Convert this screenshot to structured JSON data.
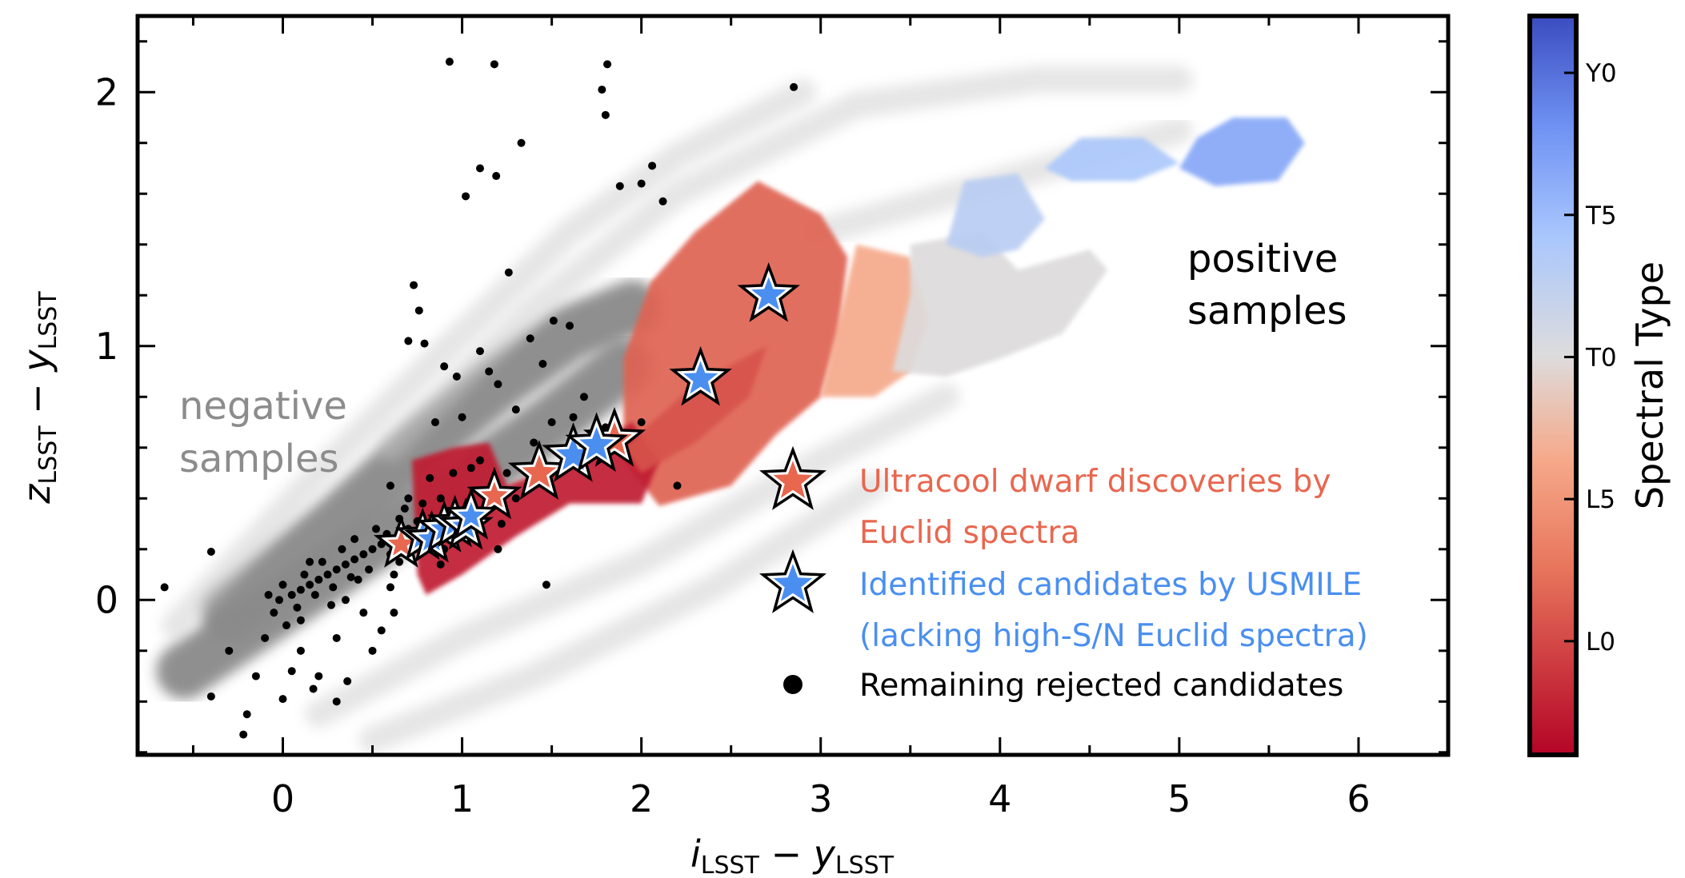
{
  "chart_data": {
    "type": "scatter",
    "xlabel": {
      "main": "i",
      "sub": "LSST",
      "minus": " − ",
      "main2": "y",
      "sub2": "LSST"
    },
    "ylabel": {
      "main": "z",
      "sub": "LSST",
      "minus": " − ",
      "main2": "y",
      "sub2": "LSST"
    },
    "xlim": [
      -0.81,
      6.5
    ],
    "ylim": [
      -0.61,
      2.3
    ],
    "xticks": [
      0,
      1,
      2,
      3,
      4,
      5,
      6
    ],
    "yticks": [
      0,
      1,
      2
    ],
    "grid": false,
    "colorbar": {
      "label": "Spectral Type",
      "colormap": "coolwarm_r",
      "range": [
        -4,
        22
      ],
      "ticks": [
        {
          "value": 0,
          "label": "L0"
        },
        {
          "value": 5,
          "label": "L5"
        },
        {
          "value": 10,
          "label": "T0"
        },
        {
          "value": 15,
          "label": "T5"
        },
        {
          "value": 20,
          "label": "Y0"
        }
      ]
    },
    "annotations": {
      "negative": [
        "negative",
        "samples"
      ],
      "positive": [
        "positive",
        "samples"
      ],
      "negative_color": "#8c8c8c"
    },
    "negative_samples_bands": [
      {
        "density": "high",
        "path": [
          [
            -0.55,
            -0.28
          ],
          [
            0.0,
            -0.02
          ],
          [
            0.5,
            0.22
          ],
          [
            1.0,
            0.45
          ],
          [
            1.5,
            0.7
          ],
          [
            1.9,
            0.92
          ]
        ]
      },
      {
        "density": "high",
        "path": [
          [
            -0.3,
            -0.05
          ],
          [
            0.3,
            0.3
          ],
          [
            0.8,
            0.62
          ],
          [
            1.2,
            0.85
          ],
          [
            1.6,
            1.05
          ],
          [
            1.95,
            1.15
          ]
        ]
      },
      {
        "density": "low",
        "path": [
          [
            -0.6,
            -0.1
          ],
          [
            0.2,
            0.5
          ],
          [
            1.0,
            1.05
          ],
          [
            1.6,
            1.45
          ],
          [
            2.2,
            1.75
          ],
          [
            2.9,
            2.0
          ]
        ]
      },
      {
        "density": "low",
        "path": [
          [
            0.6,
            0.6
          ],
          [
            1.4,
            1.15
          ],
          [
            2.2,
            1.6
          ],
          [
            3.2,
            1.95
          ],
          [
            4.2,
            2.05
          ],
          [
            5.0,
            2.05
          ]
        ]
      },
      {
        "density": "low",
        "path": [
          [
            3.0,
            1.45
          ],
          [
            3.5,
            1.55
          ],
          [
            4.0,
            1.65
          ],
          [
            4.5,
            1.75
          ],
          [
            5.0,
            1.85
          ]
        ]
      },
      {
        "density": "low",
        "path": [
          [
            0.2,
            -0.45
          ],
          [
            1.0,
            -0.15
          ],
          [
            2.0,
            0.15
          ],
          [
            3.0,
            0.55
          ],
          [
            3.7,
            0.8
          ]
        ]
      },
      {
        "density": "low",
        "path": [
          [
            0.5,
            -0.55
          ],
          [
            1.4,
            -0.3
          ],
          [
            2.4,
            0.05
          ],
          [
            3.3,
            0.45
          ]
        ]
      }
    ],
    "positive_samples_hexbin_regions": [
      {
        "spectral_type": 1.5,
        "polygon": [
          [
            1.9,
            0.95
          ],
          [
            2.05,
            1.25
          ],
          [
            2.3,
            1.45
          ],
          [
            2.65,
            1.65
          ],
          [
            3.0,
            1.52
          ],
          [
            3.15,
            1.35
          ],
          [
            3.1,
            1.05
          ],
          [
            3.0,
            0.8
          ],
          [
            2.75,
            0.65
          ],
          [
            2.5,
            0.45
          ],
          [
            2.1,
            0.37
          ],
          [
            1.9,
            0.55
          ]
        ]
      },
      {
        "spectral_type": -2.5,
        "polygon": [
          [
            0.75,
            0.1
          ],
          [
            0.72,
            0.55
          ],
          [
            0.95,
            0.6
          ],
          [
            1.15,
            0.62
          ],
          [
            1.25,
            0.45
          ],
          [
            1.6,
            0.55
          ],
          [
            1.95,
            0.7
          ],
          [
            2.1,
            0.55
          ],
          [
            2.0,
            0.38
          ],
          [
            1.6,
            0.38
          ],
          [
            1.3,
            0.25
          ],
          [
            1.0,
            0.1
          ],
          [
            0.8,
            0.02
          ]
        ]
      },
      {
        "spectral_type": 0.5,
        "polygon": [
          [
            1.9,
            0.6
          ],
          [
            2.3,
            0.85
          ],
          [
            2.7,
            1.0
          ],
          [
            2.6,
            0.8
          ],
          [
            2.3,
            0.62
          ],
          [
            2.0,
            0.5
          ]
        ]
      },
      {
        "spectral_type": 6.5,
        "polygon": [
          [
            3.0,
            0.8
          ],
          [
            3.1,
            1.1
          ],
          [
            3.2,
            1.4
          ],
          [
            3.5,
            1.35
          ],
          [
            3.6,
            1.1
          ],
          [
            3.5,
            0.9
          ],
          [
            3.3,
            0.8
          ]
        ]
      },
      {
        "spectral_type": 10,
        "polygon": [
          [
            3.4,
            0.9
          ],
          [
            3.5,
            1.2
          ],
          [
            3.5,
            1.4
          ],
          [
            3.9,
            1.45
          ],
          [
            4.1,
            1.3
          ],
          [
            4.5,
            1.38
          ],
          [
            4.6,
            1.3
          ],
          [
            4.35,
            1.05
          ],
          [
            4.0,
            0.95
          ],
          [
            3.7,
            0.88
          ]
        ]
      },
      {
        "spectral_type": 13,
        "polygon": [
          [
            3.7,
            1.4
          ],
          [
            3.8,
            1.65
          ],
          [
            4.1,
            1.68
          ],
          [
            4.25,
            1.5
          ],
          [
            4.1,
            1.38
          ],
          [
            3.9,
            1.35
          ]
        ]
      },
      {
        "spectral_type": 14,
        "polygon": [
          [
            4.25,
            1.7
          ],
          [
            4.45,
            1.82
          ],
          [
            4.8,
            1.82
          ],
          [
            5.0,
            1.72
          ],
          [
            4.75,
            1.65
          ],
          [
            4.4,
            1.65
          ]
        ]
      },
      {
        "spectral_type": 16.5,
        "polygon": [
          [
            5.0,
            1.7
          ],
          [
            5.1,
            1.82
          ],
          [
            5.3,
            1.9
          ],
          [
            5.6,
            1.9
          ],
          [
            5.7,
            1.8
          ],
          [
            5.55,
            1.65
          ],
          [
            5.2,
            1.63
          ]
        ]
      }
    ],
    "series": [
      {
        "name": "Ultracool dwarf discoveries by Euclid spectra",
        "marker": "star",
        "color": "#e8674f",
        "points": [
          [
            0.66,
            0.22
          ],
          [
            1.18,
            0.41
          ],
          [
            1.43,
            0.5
          ],
          [
            1.85,
            0.63
          ]
        ]
      },
      {
        "name": "Identified candidates by USMILE (lacking high-S/N Euclid spectra)",
        "marker": "star",
        "color": "#4a8ff0",
        "points": [
          [
            0.78,
            0.25
          ],
          [
            0.83,
            0.24
          ],
          [
            0.9,
            0.28
          ],
          [
            0.96,
            0.3
          ],
          [
            1.02,
            0.29
          ],
          [
            1.05,
            0.33
          ],
          [
            1.62,
            0.57
          ],
          [
            1.75,
            0.61
          ],
          [
            2.33,
            0.87
          ],
          [
            2.71,
            1.2
          ]
        ]
      },
      {
        "name": "Remaining rejected candidates",
        "marker": "dot",
        "color": "#000000",
        "points": [
          [
            0.93,
            2.12
          ],
          [
            1.18,
            2.11
          ],
          [
            1.81,
            2.11
          ],
          [
            1.78,
            2.01
          ],
          [
            1.8,
            1.91
          ],
          [
            2.85,
            2.02
          ],
          [
            1.33,
            1.8
          ],
          [
            1.1,
            1.7
          ],
          [
            1.19,
            1.67
          ],
          [
            1.02,
            1.59
          ],
          [
            2.06,
            1.71
          ],
          [
            2.0,
            1.64
          ],
          [
            1.88,
            1.63
          ],
          [
            2.12,
            1.57
          ],
          [
            1.26,
            1.29
          ],
          [
            0.73,
            1.24
          ],
          [
            0.76,
            1.14
          ],
          [
            0.7,
            1.02
          ],
          [
            0.79,
            1.01
          ],
          [
            1.51,
            1.1
          ],
          [
            1.6,
            1.08
          ],
          [
            1.38,
            1.03
          ],
          [
            -0.4,
            0.19
          ],
          [
            -0.66,
            0.05
          ],
          [
            1.47,
            0.06
          ],
          [
            -0.4,
            -0.38
          ],
          [
            -0.2,
            -0.45
          ],
          [
            -0.22,
            -0.53
          ],
          [
            0.0,
            -0.39
          ],
          [
            0.17,
            -0.35
          ],
          [
            0.3,
            -0.4
          ],
          [
            0.2,
            -0.3
          ],
          [
            0.36,
            -0.32
          ],
          [
            0.1,
            -0.2
          ],
          [
            -0.3,
            -0.2
          ],
          [
            -0.15,
            -0.3
          ],
          [
            0.5,
            -0.2
          ],
          [
            0.45,
            -0.05
          ],
          [
            0.55,
            -0.12
          ],
          [
            0.62,
            -0.05
          ],
          [
            0.3,
            -0.15
          ],
          [
            0.05,
            -0.28
          ],
          [
            -0.1,
            -0.15
          ],
          [
            0.9,
            0.92
          ],
          [
            0.97,
            0.88
          ],
          [
            1.1,
            0.98
          ],
          [
            1.15,
            0.9
          ],
          [
            1.2,
            0.85
          ],
          [
            1.45,
            0.93
          ],
          [
            1.3,
            0.75
          ],
          [
            0.85,
            0.7
          ],
          [
            1.0,
            0.72
          ],
          [
            1.4,
            0.62
          ],
          [
            1.5,
            0.7
          ],
          [
            1.62,
            0.72
          ],
          [
            1.68,
            0.8
          ],
          [
            1.8,
            0.68
          ],
          [
            2.0,
            0.7
          ],
          [
            2.2,
            0.45
          ],
          [
            0.95,
            0.5
          ],
          [
            1.05,
            0.52
          ],
          [
            0.82,
            0.48
          ],
          [
            0.88,
            0.4
          ],
          [
            0.7,
            0.4
          ],
          [
            0.65,
            0.32
          ],
          [
            0.6,
            0.45
          ],
          [
            1.1,
            0.55
          ],
          [
            1.25,
            0.5
          ],
          [
            1.3,
            0.4
          ],
          [
            -0.05,
            -0.05
          ],
          [
            -0.02,
            0.0
          ],
          [
            0.05,
            0.02
          ],
          [
            0.1,
            0.04
          ],
          [
            0.08,
            -0.03
          ],
          [
            0.15,
            0.06
          ],
          [
            0.2,
            0.08
          ],
          [
            0.18,
            0.02
          ],
          [
            0.25,
            0.1
          ],
          [
            0.3,
            0.12
          ],
          [
            0.28,
            0.05
          ],
          [
            0.35,
            0.14
          ],
          [
            0.4,
            0.16
          ],
          [
            0.38,
            0.09
          ],
          [
            0.45,
            0.18
          ],
          [
            0.5,
            0.2
          ],
          [
            0.48,
            0.12
          ],
          [
            0.55,
            0.22
          ],
          [
            0.6,
            0.18
          ],
          [
            0.58,
            0.26
          ],
          [
            0.65,
            0.15
          ],
          [
            0.7,
            0.28
          ],
          [
            0.72,
            0.2
          ],
          [
            0.75,
            0.31
          ],
          [
            0.8,
            0.22
          ],
          [
            0.85,
            0.3
          ],
          [
            0.9,
            0.2
          ],
          [
            0.95,
            0.35
          ],
          [
            1.0,
            0.25
          ],
          [
            1.05,
            0.38
          ],
          [
            1.1,
            0.3
          ],
          [
            1.15,
            0.36
          ],
          [
            0.12,
            0.1
          ],
          [
            0.22,
            0.15
          ],
          [
            0.33,
            0.2
          ],
          [
            0.42,
            0.08
          ],
          [
            0.52,
            0.28
          ],
          [
            0.62,
            0.1
          ],
          [
            0.0,
            0.06
          ],
          [
            0.1,
            -0.08
          ],
          [
            0.27,
            -0.02
          ],
          [
            0.4,
            0.24
          ],
          [
            0.68,
            0.36
          ],
          [
            0.78,
            0.38
          ],
          [
            0.88,
            0.14
          ],
          [
            1.2,
            0.2
          ],
          [
            1.22,
            0.3
          ],
          [
            -0.08,
            0.02
          ],
          [
            0.02,
            -0.1
          ],
          [
            0.35,
            0.0
          ],
          [
            0.15,
            0.15
          ],
          [
            0.6,
            0.05
          ]
        ]
      }
    ],
    "legend": {
      "entries": [
        {
          "lines": [
            "Ultracool dwarf discoveries by",
            "Euclid spectra"
          ],
          "color": "#e8674f"
        },
        {
          "lines": [
            "Identified candidates by USMILE",
            "(lacking high-S/N Euclid spectra)"
          ],
          "color": "#4a8ff0"
        },
        {
          "lines": [
            "Remaining rejected candidates"
          ],
          "color": "#000000"
        }
      ]
    }
  }
}
